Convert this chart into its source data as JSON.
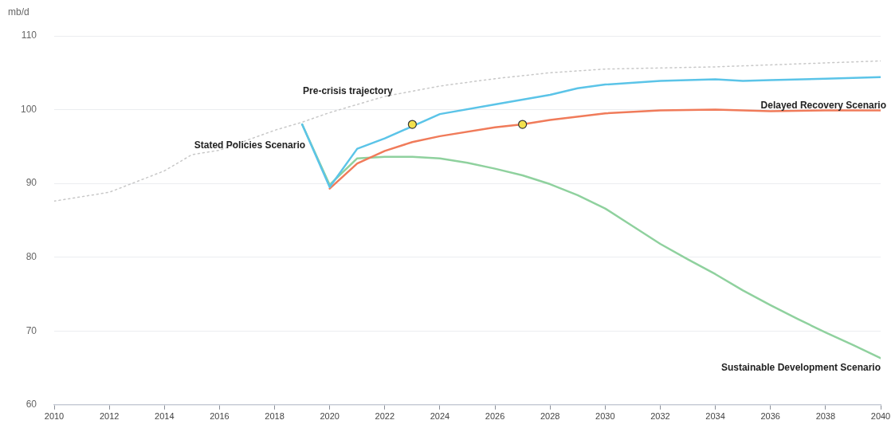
{
  "chart_data": {
    "type": "line",
    "ylabel": "mb/d",
    "xlim": [
      2010,
      2040
    ],
    "xticks": [
      2010,
      2012,
      2014,
      2016,
      2018,
      2020,
      2022,
      2024,
      2026,
      2028,
      2030,
      2032,
      2034,
      2036,
      2038,
      2040
    ],
    "ylim": [
      60,
      110
    ],
    "yticks": [
      60,
      70,
      80,
      90,
      100,
      110
    ],
    "grid": "y",
    "legend": false,
    "marker": "none",
    "series": [
      {
        "name": "Pre-crisis trajectory",
        "color": "#c8c8c8",
        "line_style": "dotted",
        "x": [
          2010,
          2012,
          2014,
          2015,
          2016,
          2018,
          2019,
          2020,
          2022,
          2024,
          2026,
          2028,
          2030,
          2034,
          2040
        ],
        "values": [
          87.6,
          88.8,
          91.7,
          93.9,
          94.5,
          97.2,
          98.3,
          99.6,
          101.8,
          103.2,
          104.2,
          105,
          105.5,
          105.8,
          106.6
        ]
      },
      {
        "name": "Stated Policies Scenario",
        "color": "#5bc4e8",
        "x": [
          2019,
          2020,
          2021,
          2022,
          2024,
          2026,
          2028,
          2029,
          2030,
          2032,
          2034,
          2035,
          2036,
          2038,
          2040
        ],
        "values": [
          98,
          89.5,
          94.7,
          96.1,
          99.4,
          100.7,
          102,
          102.9,
          103.4,
          103.9,
          104.1,
          103.9,
          104,
          104.2,
          104.4
        ]
      },
      {
        "name": "Delayed Recovery Scenario",
        "color": "#f07b5a",
        "x": [
          2020,
          2021,
          2022,
          2023,
          2024,
          2026,
          2027,
          2028,
          2030,
          2032,
          2034,
          2036,
          2038,
          2040
        ],
        "values": [
          89.3,
          92.7,
          94.4,
          95.6,
          96.4,
          97.6,
          98,
          98.6,
          99.5,
          99.9,
          100,
          99.8,
          99.9,
          99.9
        ]
      },
      {
        "name": "Sustainable Development Scenario",
        "color": "#8fd19e",
        "x": [
          2019,
          2020,
          2021,
          2022,
          2023,
          2024,
          2025,
          2026,
          2027,
          2028,
          2029,
          2030,
          2031,
          2032,
          2033,
          2034,
          2035,
          2036,
          2037,
          2038,
          2039,
          2040
        ],
        "values": [
          98,
          89.8,
          93.4,
          93.6,
          93.6,
          93.4,
          92.8,
          92,
          91.1,
          89.9,
          88.4,
          86.6,
          84.2,
          81.8,
          79.7,
          77.7,
          75.5,
          73.5,
          71.6,
          69.8,
          68.1,
          66.3
        ]
      },
      {
        "type": "scatter",
        "marker": "circle",
        "color": "#f2e04e",
        "x": [
          2023,
          2027
        ],
        "values": [
          98,
          98
        ]
      }
    ]
  }
}
